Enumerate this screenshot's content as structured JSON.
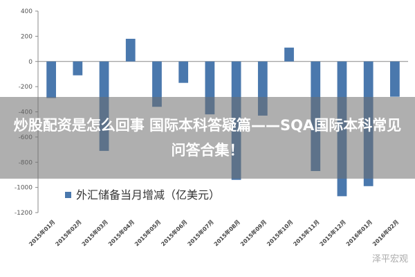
{
  "banner": {
    "title": "炒股配资是怎么回事 国际本科答疑篇——SQA国际本科常见问答合集！"
  },
  "watermark": "泽平宏观",
  "chart_data": {
    "type": "bar",
    "legend": "外汇储备当月增减（亿美元）",
    "series_color": "#4a78ad",
    "ylim": [
      -1200,
      400
    ],
    "yticks": [
      400,
      200,
      0,
      -200,
      -400,
      -600,
      -800,
      -1000,
      -1200
    ],
    "categories": [
      "2015年01月",
      "2015年02月",
      "2015年03月",
      "2015年04月",
      "2015年05月",
      "2015年06月",
      "2015年07月",
      "2015年08月",
      "2015年09月",
      "2015年10月",
      "2015年11月",
      "2015年12月",
      "2016年01月",
      "2016年02月"
    ],
    "values": [
      -290,
      -110,
      -710,
      180,
      -360,
      -170,
      -420,
      -940,
      -430,
      110,
      -870,
      -1070,
      -990,
      -280
    ]
  }
}
